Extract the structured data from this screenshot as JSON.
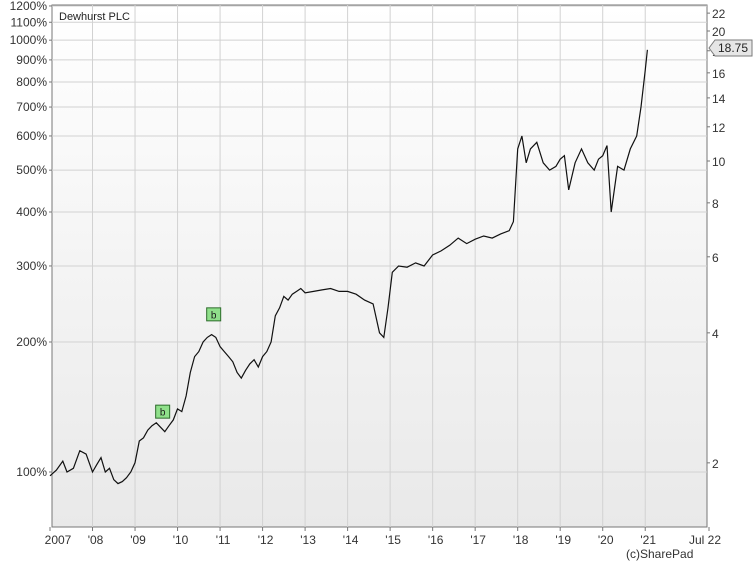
{
  "chart_data": {
    "type": "line",
    "title": "Dewhurst PLC",
    "copyright": "(c)SharePad",
    "y_left_scale": "log",
    "y_right_scale": "log",
    "y_left_ticks": [
      "100%",
      "200%",
      "300%",
      "400%",
      "500%",
      "600%",
      "700%",
      "800%",
      "900%",
      "1000%",
      "1100%",
      "1200%"
    ],
    "y_left_values": [
      100,
      200,
      300,
      400,
      500,
      600,
      700,
      800,
      900,
      1000,
      1100,
      1200
    ],
    "y_right_ticks": [
      "2",
      "4",
      "6",
      "8",
      "10",
      "12",
      "14",
      "16",
      "18",
      "20",
      "22"
    ],
    "y_right_values": [
      2,
      4,
      6,
      8,
      10,
      12,
      14,
      16,
      18,
      20,
      22
    ],
    "x_ticks": [
      "2007",
      "'08",
      "'09",
      "'10",
      "'11",
      "'12",
      "'13",
      "'14",
      "'15",
      "'16",
      "'17",
      "'18",
      "'19",
      "'20",
      "'21",
      "Jul 22"
    ],
    "x_tick_years": [
      2007,
      2008,
      2009,
      2010,
      2011,
      2012,
      2013,
      2014,
      2015,
      2016,
      2017,
      2018,
      2019,
      2020,
      2021,
      2022.5
    ],
    "x_range": [
      2007,
      2022.5
    ],
    "grid": true,
    "last_price": "18.75",
    "markers": [
      {
        "label": "b",
        "x": 2009.65,
        "y": 125
      },
      {
        "label": "b",
        "x": 2010.85,
        "y": 210
      }
    ],
    "series": [
      {
        "x": [
          2007.0,
          2007.15,
          2007.3,
          2007.4,
          2007.55,
          2007.7,
          2007.85,
          2008.0,
          2008.1,
          2008.2,
          2008.3,
          2008.4,
          2008.5,
          2008.6,
          2008.7,
          2008.8,
          2008.9,
          2009.0,
          2009.1,
          2009.2,
          2009.3,
          2009.4,
          2009.5,
          2009.6,
          2009.7,
          2009.8,
          2009.9,
          2010.0,
          2010.1,
          2010.2,
          2010.3,
          2010.4,
          2010.5,
          2010.6,
          2010.7,
          2010.8,
          2010.9,
          2011.0,
          2011.1,
          2011.2,
          2011.3,
          2011.4,
          2011.5,
          2011.6,
          2011.7,
          2011.8,
          2011.9,
          2012.0,
          2012.1,
          2012.2,
          2012.3,
          2012.4,
          2012.5,
          2012.6,
          2012.7,
          2012.8,
          2012.9,
          2013.0,
          2013.2,
          2013.4,
          2013.6,
          2013.8,
          2014.0,
          2014.2,
          2014.4,
          2014.6,
          2014.75,
          2014.85,
          2014.95,
          2015.05,
          2015.2,
          2015.4,
          2015.6,
          2015.8,
          2016.0,
          2016.2,
          2016.4,
          2016.6,
          2016.8,
          2017.0,
          2017.2,
          2017.4,
          2017.6,
          2017.8,
          2017.9,
          2018.0,
          2018.1,
          2018.2,
          2018.3,
          2018.45,
          2018.6,
          2018.75,
          2018.9,
          2019.0,
          2019.1,
          2019.2,
          2019.35,
          2019.5,
          2019.65,
          2019.8,
          2019.9,
          2020.0,
          2020.1,
          2020.2,
          2020.35,
          2020.5,
          2020.65,
          2020.8,
          2020.9,
          2021.0,
          2021.05
        ],
        "y": [
          98,
          101,
          106,
          100,
          102,
          112,
          110,
          100,
          104,
          108,
          100,
          102,
          96,
          94,
          95,
          97,
          100,
          105,
          118,
          120,
          125,
          128,
          130,
          127,
          124,
          128,
          132,
          140,
          138,
          150,
          170,
          185,
          190,
          200,
          205,
          208,
          205,
          195,
          190,
          185,
          180,
          170,
          165,
          172,
          178,
          182,
          175,
          185,
          190,
          200,
          230,
          240,
          255,
          250,
          258,
          262,
          266,
          260,
          262,
          264,
          266,
          262,
          262,
          258,
          250,
          245,
          210,
          205,
          240,
          290,
          300,
          298,
          305,
          300,
          318,
          325,
          335,
          348,
          338,
          346,
          352,
          348,
          356,
          362,
          380,
          560,
          600,
          520,
          560,
          580,
          520,
          500,
          510,
          530,
          540,
          450,
          520,
          560,
          520,
          500,
          530,
          540,
          570,
          400,
          510,
          500,
          560,
          600,
          700,
          850,
          950
        ]
      }
    ]
  }
}
